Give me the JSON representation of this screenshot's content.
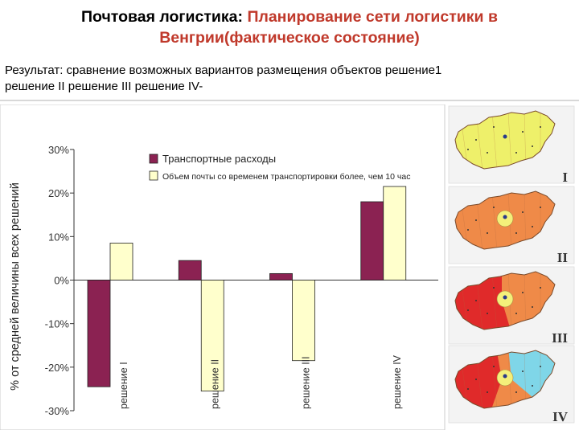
{
  "title": {
    "part1": "Почтовая логистика",
    "sep": ": ",
    "part2": "Планирование сети логистики в",
    "part3": "Венгрии(фактическое состояние)"
  },
  "subtitle": {
    "line1": "Результат: сравнение возможных вариантов размещения объектов решение1",
    "line2": "решение II решение III решение IV-"
  },
  "chart_data": {
    "type": "bar",
    "categories": [
      "решение I",
      "решение II",
      "решение III",
      "решение IV"
    ],
    "series": [
      {
        "name": "Транспортные расходы",
        "color": "#8b2252",
        "values": [
          -24.5,
          4.5,
          1.5,
          18.0
        ]
      },
      {
        "name": "Объем почты со временем транспортировки более, чем 10 час",
        "color": "#ffffcc",
        "values": [
          8.5,
          -25.5,
          -18.5,
          21.5
        ]
      }
    ],
    "ylabel": "% от средней величины всех решений",
    "ylim": [
      -30,
      30
    ],
    "yticks": [
      "-30%",
      "-20%",
      "-10%",
      "0%",
      "10%",
      "20%",
      "30%"
    ],
    "legend_position": "top-right",
    "grid": false
  },
  "maps": [
    {
      "label": "I",
      "colors": [
        "#eef06a"
      ]
    },
    {
      "label": "II",
      "colors": [
        "#ef8a48",
        "#f4f07a"
      ]
    },
    {
      "label": "III",
      "colors": [
        "#e02a2a",
        "#ef8a48",
        "#f4f07a"
      ]
    },
    {
      "label": "IV",
      "colors": [
        "#e02a2a",
        "#ef8a48",
        "#7fd6e8",
        "#f4f07a"
      ]
    }
  ]
}
